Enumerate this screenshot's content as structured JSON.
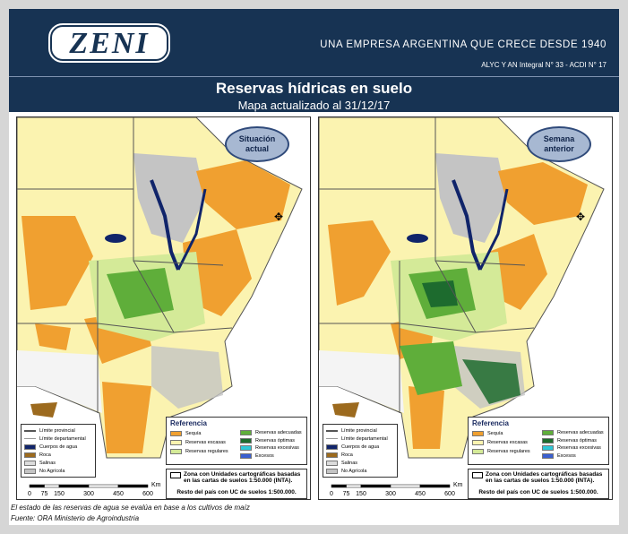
{
  "header": {
    "logo": "ZENI",
    "tagline": "UNA EMPRESA ARGENTINA QUE CRECE DESDE 1940",
    "license": "ALYC Y AN Integral N° 33 - ACDI N° 17"
  },
  "title": "Reservas hídricas en suelo",
  "subtitle": "Mapa actualizado al 31/12/17",
  "maps": [
    {
      "badge": "Situación actual",
      "boundaries": [
        {
          "label": "Límite provincial",
          "color": "#555555"
        },
        {
          "label": "Límite departamental",
          "color": "#999999"
        },
        {
          "label": "Cuerpos de agua",
          "color": "#10246a"
        },
        {
          "label": "Roca",
          "color": "#9c6a1e"
        },
        {
          "label": "Salinas",
          "color": "#dcdcdc"
        },
        {
          "label": "No Agrícola",
          "color": "#c4c4c4"
        }
      ],
      "reference": {
        "title": "Referencia",
        "items": [
          {
            "label": "Sequía",
            "color": "#f0a030"
          },
          {
            "label": "Reservas escasas",
            "color": "#fbf3b0"
          },
          {
            "label": "Reservas regulares",
            "color": "#d4ea98"
          },
          {
            "label": "Reservas adecuadas",
            "color": "#5fae3a"
          },
          {
            "label": "Reservas óptimas",
            "color": "#1d6b2e"
          },
          {
            "label": "Reservas excesivas",
            "color": "#2ec8d8"
          },
          {
            "label": "Excesos",
            "color": "#3a5fd0"
          }
        ]
      },
      "zone_note": "Zona con Unidades cartográficas basadas en las cartas de suelos 1:50.000 (INTA).",
      "rest_note": "Resto del país con UC de suelos 1:500.000.",
      "scale": {
        "unit": "Km",
        "ticks": [
          0,
          75,
          150,
          300,
          450,
          600
        ]
      }
    },
    {
      "badge": "Semana anterior",
      "boundaries": [
        {
          "label": "Límite provincial",
          "color": "#555555"
        },
        {
          "label": "Límite departamental",
          "color": "#999999"
        },
        {
          "label": "Cuerpos de agua",
          "color": "#10246a"
        },
        {
          "label": "Roca",
          "color": "#9c6a1e"
        },
        {
          "label": "Salinas",
          "color": "#dcdcdc"
        },
        {
          "label": "No Agrícola",
          "color": "#c4c4c4"
        }
      ],
      "reference": {
        "title": "Referencia",
        "items": [
          {
            "label": "Sequía",
            "color": "#f0a030"
          },
          {
            "label": "Reservas escasas",
            "color": "#fbf3b0"
          },
          {
            "label": "Reservas regulares",
            "color": "#d4ea98"
          },
          {
            "label": "Reservas adecuadas",
            "color": "#5fae3a"
          },
          {
            "label": "Reservas óptimas",
            "color": "#1d6b2e"
          },
          {
            "label": "Reservas excesivas",
            "color": "#2ec8d8"
          },
          {
            "label": "Excesos",
            "color": "#3a5fd0"
          }
        ]
      },
      "zone_note": "Zona con Unidades cartográficas basadas en las cartas de suelos 1:50.000 (INTA).",
      "rest_note": "Resto del país con UC de suelos 1:500.000.",
      "scale": {
        "unit": "Km",
        "ticks": [
          0,
          75,
          150,
          300,
          450,
          600
        ]
      }
    }
  ],
  "footnotes": [
    "El estado de las reservas de agua se evalúa en base a los cultivos de maíz",
    "Fuente: ORA Ministerio de Agroindustria"
  ]
}
